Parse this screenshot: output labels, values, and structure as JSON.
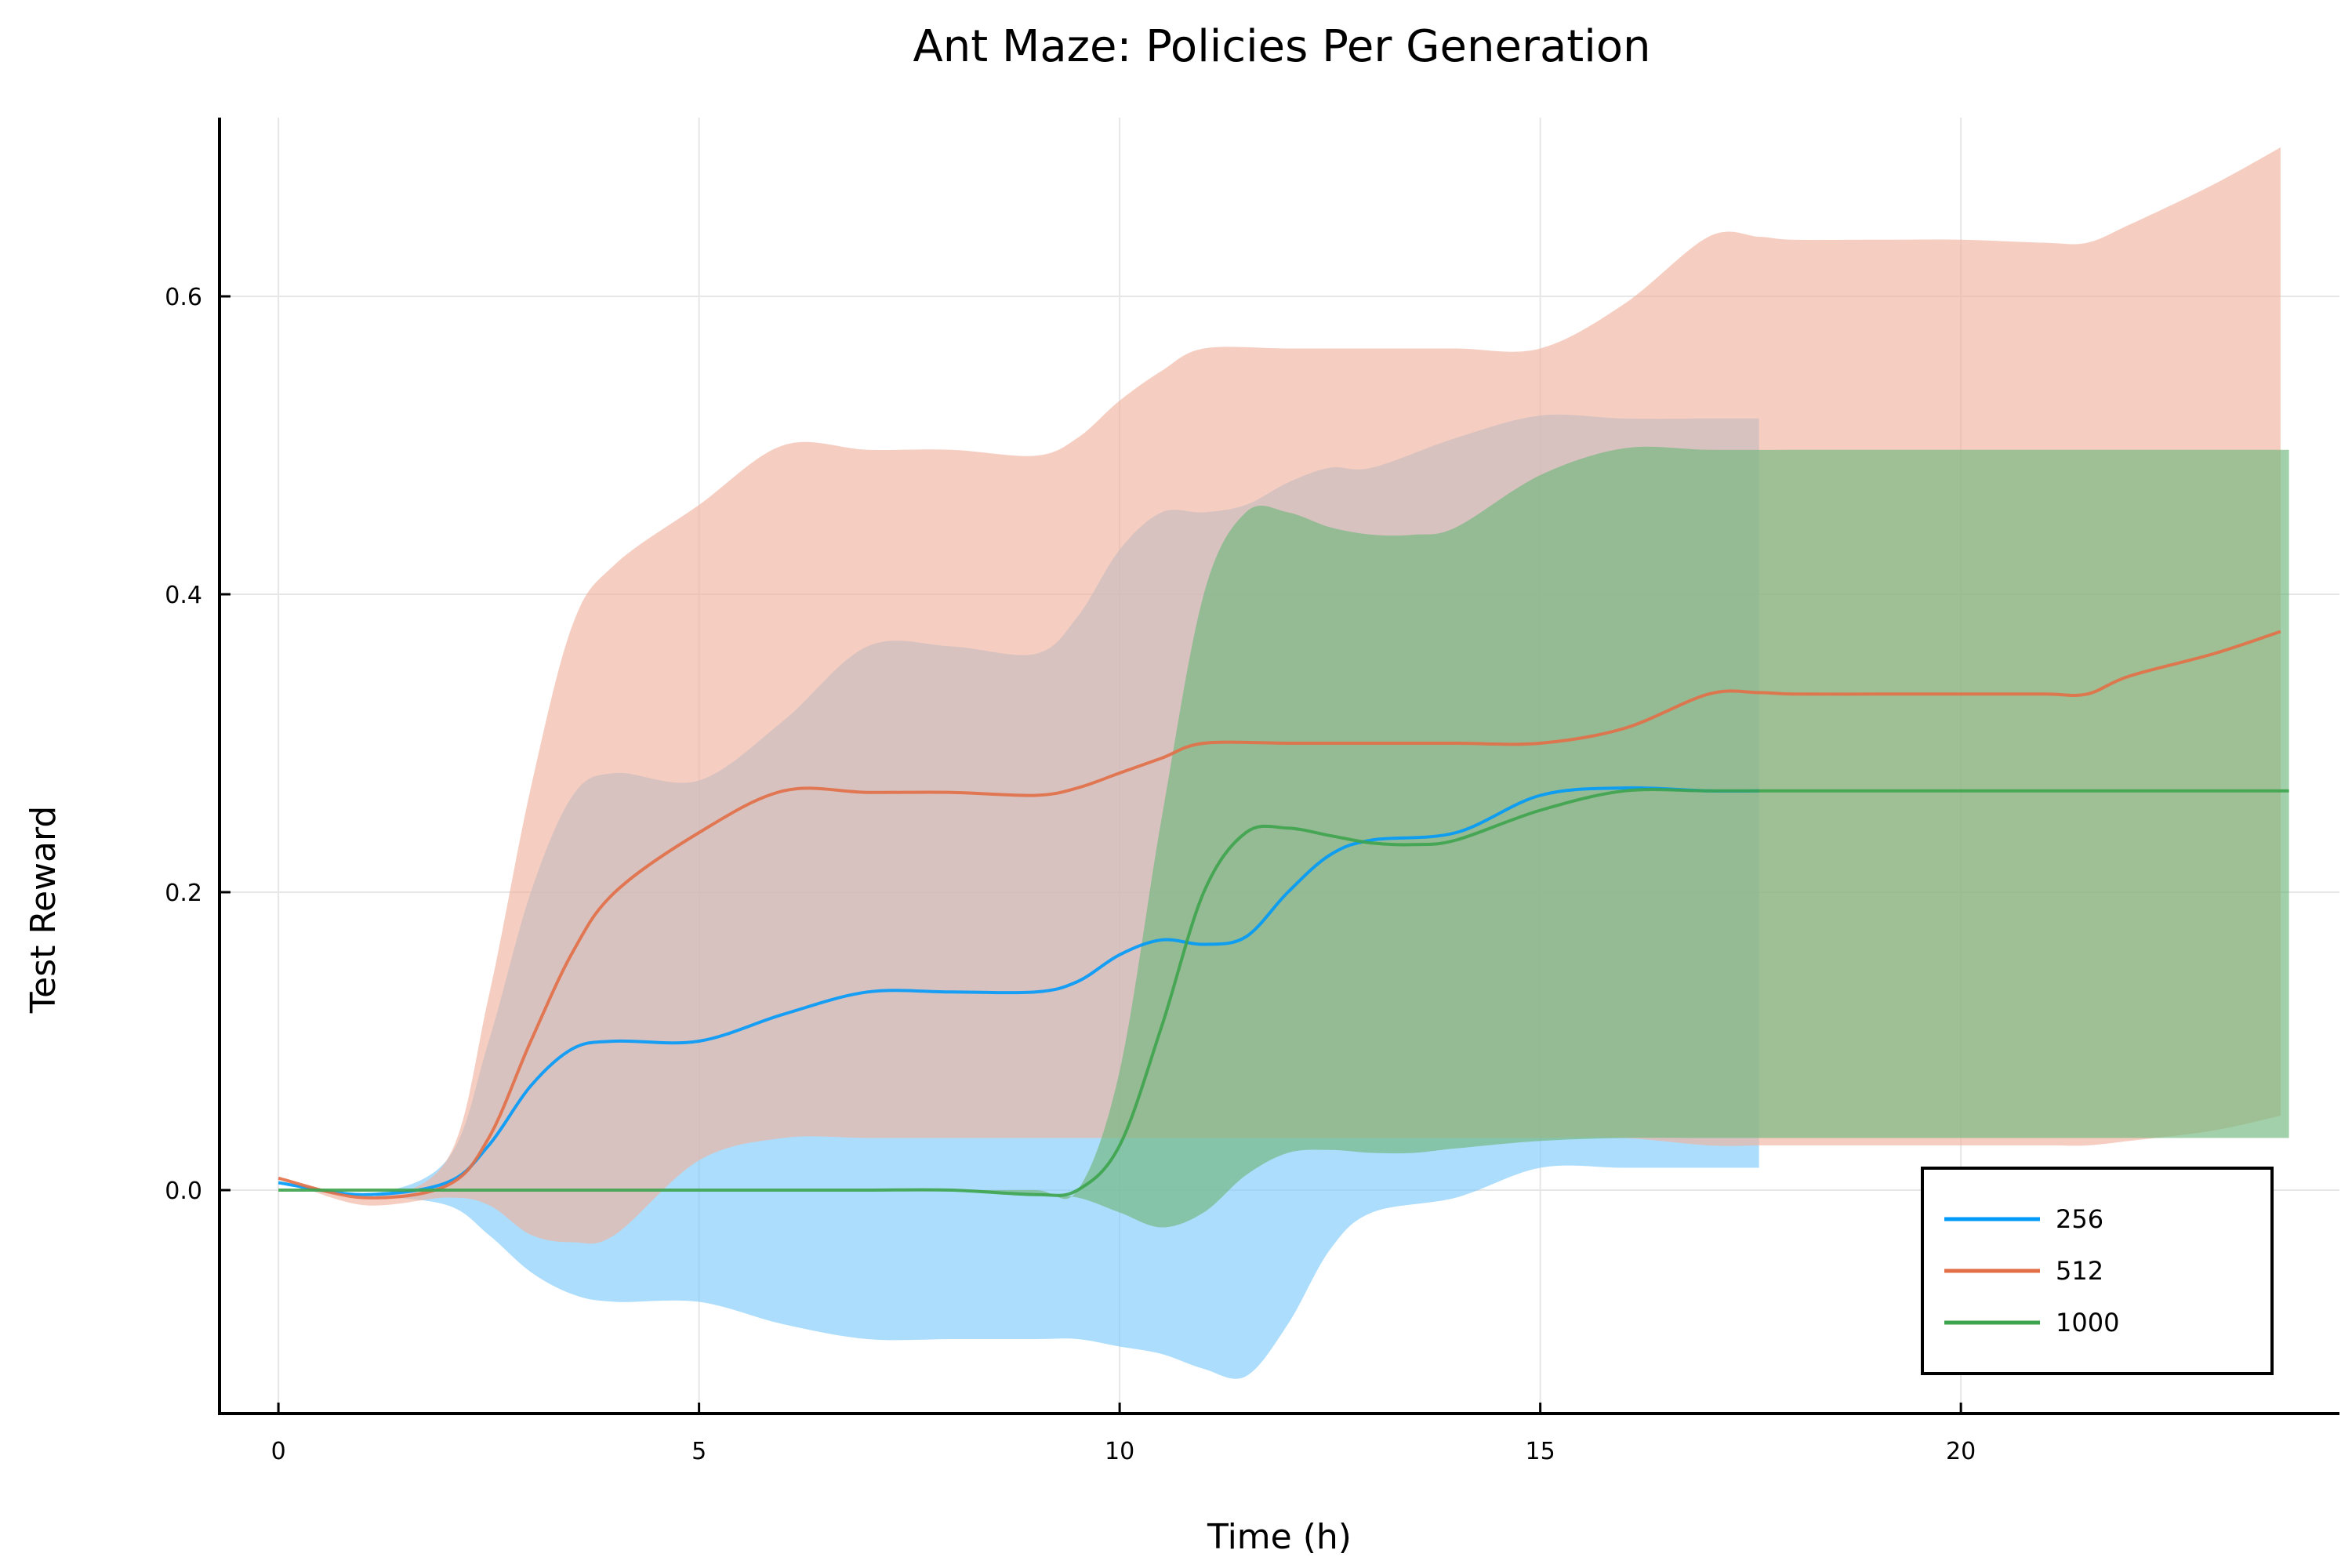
{
  "chart_data": {
    "type": "area",
    "title": "Ant Maze: Policies Per Generation",
    "xlabel": "Time (h)",
    "ylabel": "Test Reward",
    "xlim": [
      -0.7,
      24.5
    ],
    "ylim": [
      -0.15,
      0.72
    ],
    "xticks": [
      0,
      5,
      10,
      15,
      20
    ],
    "yticks": [
      0.0,
      0.2,
      0.4,
      0.6
    ],
    "xtick_labels": [
      "0",
      "5",
      "10",
      "15",
      "20"
    ],
    "ytick_labels": [
      "0.0",
      "0.2",
      "0.4",
      "0.6"
    ],
    "grid": true,
    "legend_position": "bottom-right",
    "series": [
      {
        "name": "256",
        "color": "#009af9",
        "band_color": "#7fcbfb",
        "x": [
          0,
          1,
          2,
          2.5,
          3,
          3.5,
          4,
          5,
          6,
          7,
          8,
          9,
          9.5,
          10,
          10.5,
          11,
          11.5,
          12,
          12.5,
          13,
          14,
          15,
          16,
          17,
          17.6
        ],
        "mean": [
          0.005,
          -0.003,
          0.005,
          0.03,
          0.07,
          0.095,
          0.1,
          0.1,
          0.118,
          0.133,
          0.133,
          0.133,
          0.14,
          0.158,
          0.168,
          0.165,
          0.17,
          0.2,
          0.225,
          0.235,
          0.24,
          0.265,
          0.27,
          0.268,
          0.268
        ],
        "lower": [
          0.005,
          -0.003,
          -0.01,
          -0.03,
          -0.055,
          -0.07,
          -0.075,
          -0.075,
          -0.09,
          -0.1,
          -0.1,
          -0.1,
          -0.1,
          -0.105,
          -0.11,
          -0.12,
          -0.125,
          -0.09,
          -0.04,
          -0.015,
          -0.005,
          0.015,
          0.015,
          0.015,
          0.015
        ],
        "upper": [
          0.005,
          -0.003,
          0.02,
          0.1,
          0.2,
          0.265,
          0.28,
          0.275,
          0.315,
          0.365,
          0.365,
          0.36,
          0.385,
          0.43,
          0.455,
          0.455,
          0.46,
          0.475,
          0.485,
          0.485,
          0.505,
          0.52,
          0.518,
          0.518,
          0.518
        ]
      },
      {
        "name": "512",
        "color": "#e26f46",
        "band_color": "#f0b4a0",
        "x": [
          0,
          1,
          2,
          2.5,
          3,
          3.5,
          4,
          5,
          6,
          7,
          8,
          9,
          9.5,
          10,
          10.5,
          11,
          12,
          13,
          14,
          15,
          16,
          17,
          17.6,
          18,
          19,
          20,
          21,
          21.5,
          22,
          23,
          23.8
        ],
        "mean": [
          0.008,
          -0.005,
          0.003,
          0.035,
          0.1,
          0.16,
          0.2,
          0.24,
          0.268,
          0.267,
          0.267,
          0.265,
          0.27,
          0.28,
          0.29,
          0.3,
          0.3,
          0.3,
          0.3,
          0.3,
          0.31,
          0.333,
          0.334,
          0.333,
          0.333,
          0.333,
          0.333,
          0.333,
          0.345,
          0.36,
          0.375
        ],
        "lower": [
          0.008,
          -0.01,
          -0.005,
          -0.01,
          -0.03,
          -0.035,
          -0.03,
          0.02,
          0.035,
          0.035,
          0.035,
          0.035,
          0.035,
          0.035,
          0.035,
          0.035,
          0.035,
          0.035,
          0.035,
          0.035,
          0.035,
          0.03,
          0.03,
          0.03,
          0.03,
          0.03,
          0.03,
          0.03,
          0.033,
          0.04,
          0.05
        ],
        "upper": [
          0.008,
          -0.005,
          0.02,
          0.13,
          0.27,
          0.38,
          0.42,
          0.46,
          0.5,
          0.497,
          0.497,
          0.493,
          0.505,
          0.53,
          0.55,
          0.565,
          0.565,
          0.565,
          0.565,
          0.565,
          0.595,
          0.64,
          0.64,
          0.638,
          0.638,
          0.638,
          0.636,
          0.636,
          0.648,
          0.675,
          0.7
        ]
      },
      {
        "name": "1000",
        "color": "#3da44d",
        "band_color": "#70b77c",
        "x": [
          0,
          1,
          2,
          3,
          4,
          5,
          6,
          7,
          8,
          9,
          9.5,
          10,
          10.5,
          11,
          11.5,
          12,
          12.5,
          13,
          13.5,
          14,
          15,
          16,
          17,
          18,
          19,
          20,
          21,
          22,
          23,
          23.9
        ],
        "mean": [
          0.0,
          0.0,
          0.0,
          0.0,
          0.0,
          0.0,
          0.0,
          0.0,
          0.0,
          -0.003,
          0.0,
          0.03,
          0.11,
          0.2,
          0.24,
          0.243,
          0.238,
          0.233,
          0.232,
          0.235,
          0.255,
          0.268,
          0.268,
          0.268,
          0.268,
          0.268,
          0.268,
          0.268,
          0.268,
          0.268
        ],
        "lower": [
          0.0,
          0.0,
          0.0,
          0.0,
          0.0,
          0.0,
          0.0,
          0.0,
          0.0,
          -0.003,
          -0.005,
          -0.015,
          -0.025,
          -0.015,
          0.01,
          0.025,
          0.027,
          0.025,
          0.025,
          0.028,
          0.033,
          0.035,
          0.035,
          0.035,
          0.035,
          0.035,
          0.035,
          0.035,
          0.035,
          0.035
        ],
        "upper": [
          0.0,
          0.0,
          0.0,
          0.0,
          0.0,
          0.0,
          0.0,
          0.0,
          0.0,
          0.0,
          0.0,
          0.08,
          0.25,
          0.4,
          0.455,
          0.455,
          0.445,
          0.44,
          0.44,
          0.445,
          0.48,
          0.498,
          0.497,
          0.497,
          0.497,
          0.497,
          0.497,
          0.497,
          0.497,
          0.497
        ]
      }
    ]
  }
}
